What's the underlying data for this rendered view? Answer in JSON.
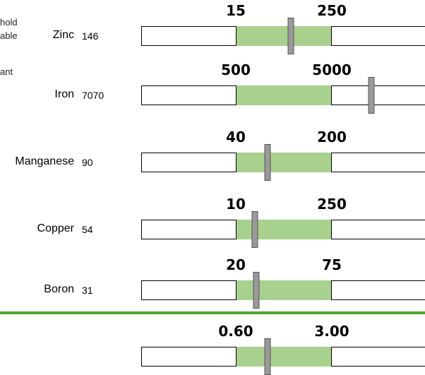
{
  "cut_notes": [
    "hold",
    "able",
    "ant"
  ],
  "chart_data": {
    "type": "bar",
    "ordinal_axis": true,
    "optimal_color": "#a9d18e",
    "marker_color": "#9a9a9a",
    "divider_color": "#4ea72e",
    "rows": [
      {
        "name": "Zinc",
        "value": "146",
        "low": "15",
        "high": "250",
        "marker_fraction": 0.57
      },
      {
        "name": "Iron",
        "value": "7070",
        "low": "500",
        "high": "5000",
        "marker_fraction": 1.41
      },
      {
        "name": "Manganese",
        "value": "90",
        "low": "40",
        "high": "200",
        "marker_fraction": 0.33
      },
      {
        "name": "Copper",
        "value": "54",
        "low": "10",
        "high": "250",
        "marker_fraction": 0.2
      },
      {
        "name": "Boron",
        "value": "31",
        "low": "20",
        "high": "75",
        "marker_fraction": 0.21
      },
      {
        "name": "",
        "value": "",
        "low": "0.60",
        "high": "3.00",
        "marker_fraction": 0.33
      }
    ]
  }
}
